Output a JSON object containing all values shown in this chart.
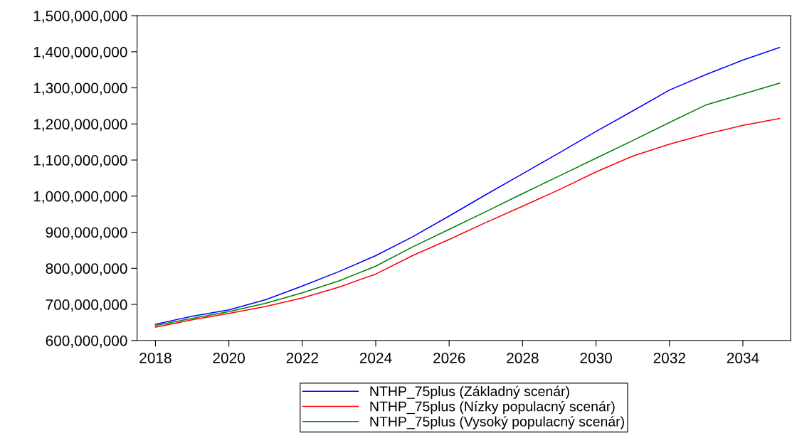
{
  "chart_data": {
    "type": "line",
    "x": [
      2018,
      2019,
      2020,
      2021,
      2022,
      2023,
      2024,
      2025,
      2026,
      2027,
      2028,
      2029,
      2030,
      2031,
      2032,
      2033,
      2034,
      2035
    ],
    "series": [
      {
        "name": "NTHP_75plus (Základný scenár)",
        "color": "#0000ff",
        "values": [
          645000000,
          667000000,
          685000000,
          713000000,
          751000000,
          791000000,
          835000000,
          887000000,
          945000000,
          1004000000,
          1062000000,
          1120000000,
          1179000000,
          1236000000,
          1294000000,
          1337000000,
          1377000000,
          1412000000
        ]
      },
      {
        "name": "NTHP_75plus (Nízky populacný scenár)",
        "color": "#ff0000",
        "values": [
          637000000,
          657000000,
          675000000,
          694000000,
          718000000,
          748000000,
          784000000,
          835000000,
          880000000,
          927000000,
          972000000,
          1018000000,
          1067000000,
          1111000000,
          1144000000,
          1172000000,
          1196000000,
          1215000000
        ]
      },
      {
        "name": "NTHP_75plus (Vysoký populacný scenár)",
        "color": "#008000",
        "values": [
          642000000,
          661000000,
          680000000,
          703000000,
          732000000,
          765000000,
          806000000,
          859000000,
          908000000,
          957000000,
          1007000000,
          1056000000,
          1105000000,
          1154000000,
          1204000000,
          1253000000,
          1283000000,
          1313000000
        ]
      }
    ],
    "xlim": [
      2017.5,
      2035.3
    ],
    "xticks": [
      2018,
      2020,
      2022,
      2024,
      2026,
      2028,
      2030,
      2032,
      2034
    ],
    "ylim": [
      600000000,
      1500000000
    ],
    "yticks": [
      {
        "value": 600000000,
        "label": "600,000,000"
      },
      {
        "value": 700000000,
        "label": "700,000,000"
      },
      {
        "value": 800000000,
        "label": "800,000,000"
      },
      {
        "value": 900000000,
        "label": "900,000,000"
      },
      {
        "value": 1000000000,
        "label": "1,000,000,000"
      },
      {
        "value": 1100000000,
        "label": "1,100,000,000"
      },
      {
        "value": 1200000000,
        "label": "1,200,000,000"
      },
      {
        "value": 1300000000,
        "label": "1,300,000,000"
      },
      {
        "value": 1400000000,
        "label": "1,400,000,000"
      },
      {
        "value": 1500000000,
        "label": "1,500,000,000"
      }
    ],
    "grid": false,
    "legend": "bottom",
    "marker": "none",
    "line_style": "solid"
  }
}
